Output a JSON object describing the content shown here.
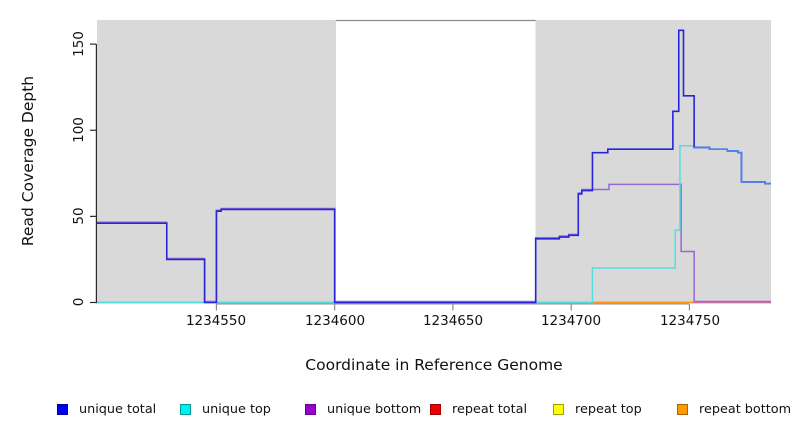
{
  "figure": {
    "x_axis_label": "Coordinate in Reference Genome",
    "y_axis_label": "Read Coverage Depth"
  },
  "axes": {
    "x_tick_labels": [
      "1234550",
      "1234600",
      "1234650",
      "1234700",
      "1234750"
    ],
    "y_tick_labels": [
      "0",
      "50",
      "100",
      "150"
    ]
  },
  "legend": {
    "position": "bottom",
    "items": [
      {
        "label": "unique total",
        "swatch_fill": "#0000EE",
        "swatch_border": "#0000AA"
      },
      {
        "label": "unique top",
        "swatch_fill": "#00EEEE",
        "swatch_border": "#009999"
      },
      {
        "label": "unique bottom",
        "swatch_fill": "#9900CC",
        "swatch_border": "#660099"
      },
      {
        "label": "repeat total",
        "swatch_fill": "#EE0000",
        "swatch_border": "#990000"
      },
      {
        "label": "repeat top",
        "swatch_fill": "#FFFF00",
        "swatch_border": "#99A000"
      },
      {
        "label": "repeat bottom",
        "swatch_fill": "#FF9900",
        "swatch_border": "#A86400"
      }
    ]
  },
  "chart_data": {
    "type": "line",
    "line_style": "step-after",
    "title": "",
    "xlabel": "Coordinate in Reference Genome",
    "ylabel": "Read Coverage Depth",
    "xlim": [
      1234499.5,
      1234784.5
    ],
    "ylim": [
      0,
      164
    ],
    "x_ticks": [
      1234550,
      1234600,
      1234650,
      1234700,
      1234750
    ],
    "y_ticks": [
      0,
      50,
      100,
      150
    ],
    "grid": false,
    "background_color": "#ffffff",
    "shaded_regions": [
      {
        "from": 1234499.5,
        "to": 1234600.5,
        "fill": "#d9d9d9"
      },
      {
        "from": 1234685.0,
        "to": 1234784.5,
        "fill": "#d9d9d9"
      }
    ],
    "gap_top_border": {
      "from": 1234600.5,
      "to": 1234685.0,
      "color": "#8a8a8a"
    },
    "series": [
      {
        "name": "repeat total",
        "color": "#dd2222",
        "points": [
          [
            1234499.5,
            0
          ],
          [
            1234784.5,
            0
          ]
        ]
      },
      {
        "name": "repeat top",
        "color": "#eeee33",
        "points": [
          [
            1234499.5,
            0
          ],
          [
            1234784.5,
            0
          ]
        ]
      },
      {
        "name": "repeat bottom",
        "color": "#ff9900",
        "points": [
          [
            1234499.5,
            0
          ],
          [
            1234784.5,
            0
          ]
        ]
      },
      {
        "name": "unique bottom",
        "color": "#9a66d2",
        "points": [
          [
            1234499.5,
            46
          ],
          [
            1234529,
            25
          ],
          [
            1234545,
            0
          ],
          [
            1234550,
            53
          ],
          [
            1234552,
            54
          ],
          [
            1234600,
            0
          ],
          [
            1234685,
            37
          ],
          [
            1234695,
            38
          ],
          [
            1234699,
            39
          ],
          [
            1234703,
            63
          ],
          [
            1234704.5,
            65
          ],
          [
            1234716,
            68
          ],
          [
            1234746.5,
            29
          ],
          [
            1234752,
            0
          ],
          [
            1234784.5,
            0
          ]
        ]
      },
      {
        "name": "unique top",
        "color": "#55dde0",
        "points": [
          [
            1234499.5,
            0
          ],
          [
            1234709,
            20
          ],
          [
            1234744,
            42
          ],
          [
            1234746,
            91
          ],
          [
            1234752,
            90
          ],
          [
            1234758.5,
            89
          ],
          [
            1234766,
            88
          ],
          [
            1234770.5,
            87
          ],
          [
            1234772,
            70
          ],
          [
            1234782,
            69
          ],
          [
            1234784.5,
            69
          ]
        ]
      },
      {
        "name": "unique total",
        "color": "#2626d8",
        "points": [
          [
            1234499.5,
            46
          ],
          [
            1234529,
            25
          ],
          [
            1234545,
            0
          ],
          [
            1234550,
            53
          ],
          [
            1234552,
            54
          ],
          [
            1234600,
            0
          ],
          [
            1234685,
            37
          ],
          [
            1234695,
            38
          ],
          [
            1234699,
            39
          ],
          [
            1234703,
            63
          ],
          [
            1234704.5,
            65
          ],
          [
            1234709,
            87
          ],
          [
            1234715.5,
            89
          ],
          [
            1234743,
            111
          ],
          [
            1234745.5,
            158
          ],
          [
            1234747.5,
            120
          ],
          [
            1234752,
            90
          ],
          [
            1234758.5,
            89
          ],
          [
            1234766,
            88
          ],
          [
            1234770.5,
            87
          ],
          [
            1234772,
            70
          ],
          [
            1234782,
            69
          ],
          [
            1234784.5,
            69
          ]
        ]
      }
    ],
    "baseline_blend_segments": [
      {
        "from": 1234499.5,
        "to": 1234702.5,
        "color": "#7cc87f"
      },
      {
        "from": 1234702.5,
        "to": 1234752.0,
        "color": "#ff9415"
      },
      {
        "from": 1234752.0,
        "to": 1234784.5,
        "color": "#e0709d"
      }
    ],
    "overlap_tint": {
      "color": "#4a86f0",
      "points": [
        [
          1234752,
          90
        ],
        [
          1234758.5,
          89
        ],
        [
          1234766,
          88
        ],
        [
          1234770.5,
          87
        ],
        [
          1234772,
          70
        ],
        [
          1234782,
          69
        ],
        [
          1234784.5,
          69
        ]
      ]
    }
  }
}
